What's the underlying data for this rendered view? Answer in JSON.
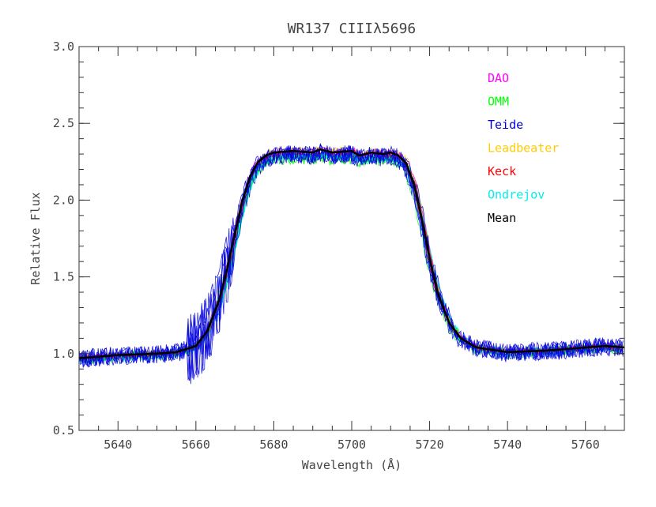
{
  "chart_data": {
    "type": "line",
    "title": "WR137 CIIIλ5696",
    "xlabel": "Wavelength (Å)",
    "ylabel": "Relative Flux",
    "xlim": [
      5630,
      5770
    ],
    "ylim": [
      0.5,
      3.0
    ],
    "xticks": [
      5640,
      5660,
      5680,
      5700,
      5720,
      5740,
      5760
    ],
    "yticks": [
      "0.5",
      "1.0",
      "1.5",
      "2.0",
      "2.5",
      "3.0"
    ],
    "grid": false,
    "legend_position": "top-right",
    "series": [
      {
        "name": "DAO",
        "color": "#ff00ff",
        "offset": 0.0,
        "noise": 0.025,
        "thin": true
      },
      {
        "name": "OMM",
        "color": "#00ff00",
        "offset": -0.05,
        "noise": 0.035,
        "thin": true
      },
      {
        "name": "Teide",
        "color": "#0000dd",
        "offset": -0.02,
        "noise": 0.06,
        "thin": true
      },
      {
        "name": "Leadbeater",
        "color": "#ffcc00",
        "offset": 0.01,
        "noise": 0.025,
        "thin": true
      },
      {
        "name": "Keck",
        "color": "#ff0000",
        "offset": -0.01,
        "noise": 0.02,
        "thin": true
      },
      {
        "name": "Ondrejov",
        "color": "#00eeee",
        "offset": -0.03,
        "noise": 0.02,
        "thin": false
      },
      {
        "name": "Mean",
        "color": "#000000",
        "thin": false,
        "x": [
          5630,
          5640,
          5650,
          5655,
          5660,
          5663,
          5666,
          5668,
          5670,
          5672,
          5674,
          5676,
          5678,
          5680,
          5685,
          5690,
          5692,
          5695,
          5700,
          5702,
          5705,
          5708,
          5710,
          5712,
          5714,
          5716,
          5718,
          5720,
          5722,
          5725,
          5728,
          5732,
          5740,
          5750,
          5755,
          5760,
          5765,
          5770
        ],
        "y": [
          0.97,
          0.99,
          1.0,
          1.01,
          1.05,
          1.15,
          1.35,
          1.55,
          1.78,
          2.0,
          2.16,
          2.25,
          2.29,
          2.31,
          2.32,
          2.31,
          2.33,
          2.31,
          2.32,
          2.29,
          2.31,
          2.3,
          2.31,
          2.29,
          2.24,
          2.1,
          1.88,
          1.62,
          1.4,
          1.2,
          1.1,
          1.04,
          1.01,
          1.02,
          1.03,
          1.04,
          1.05,
          1.04
        ]
      }
    ]
  }
}
